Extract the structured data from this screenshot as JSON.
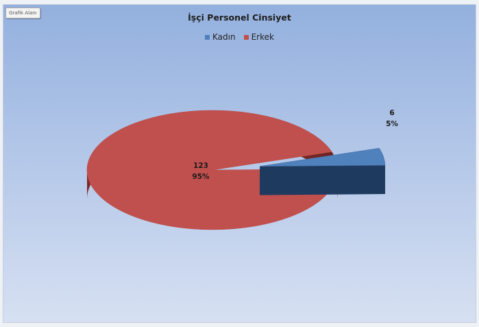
{
  "chart_area_label": "Grafik Alanı",
  "chart_data": {
    "type": "pie",
    "title": "İşçi Personel Cinsiyet",
    "categories": [
      "Kadın",
      "Erkek"
    ],
    "values": [
      6,
      123
    ],
    "percent_labels": [
      "5%",
      "95%"
    ],
    "count_labels": [
      "6",
      "123"
    ],
    "legend": "top",
    "style": "3d-exploded",
    "colors": {
      "Kadın": "#4f81bd",
      "Erkek": "#c0504d"
    }
  }
}
